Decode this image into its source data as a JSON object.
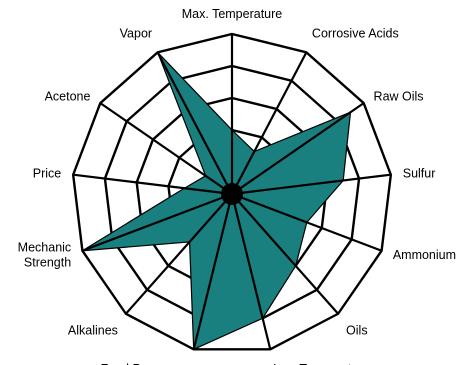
{
  "chart_data": {
    "type": "radar",
    "title": "",
    "axes": [
      {
        "label": [
          "Max. Temperature"
        ],
        "value": 4
      },
      {
        "label": [
          "Corrosive Acids"
        ],
        "value": 3
      },
      {
        "label": [
          "Raw Oils"
        ],
        "value": 9
      },
      {
        "label": [
          "Sulfur"
        ],
        "value": 7
      },
      {
        "label": [
          "Ammonium"
        ],
        "value": 5
      },
      {
        "label": [
          "Oils"
        ],
        "value": 6
      },
      {
        "label": [
          "Low Temperatures"
        ],
        "value": 8
      },
      {
        "label": [
          "Food Processes"
        ],
        "value": 10
      },
      {
        "label": [
          "Alkalines"
        ],
        "value": 4
      },
      {
        "label": [
          "Mechanic",
          "Strength"
        ],
        "value": 10
      },
      {
        "label": [
          "Price"
        ],
        "value": 3
      },
      {
        "label": [
          "Acetone"
        ],
        "value": 2
      },
      {
        "label": [
          "Vapor"
        ],
        "value": 10
      }
    ],
    "scale": {
      "min": 0,
      "max": 10,
      "rings": 5
    },
    "grid": true,
    "colors": {
      "fill": "#1a7f7f",
      "stroke": "#000000",
      "center": "#000000"
    }
  }
}
